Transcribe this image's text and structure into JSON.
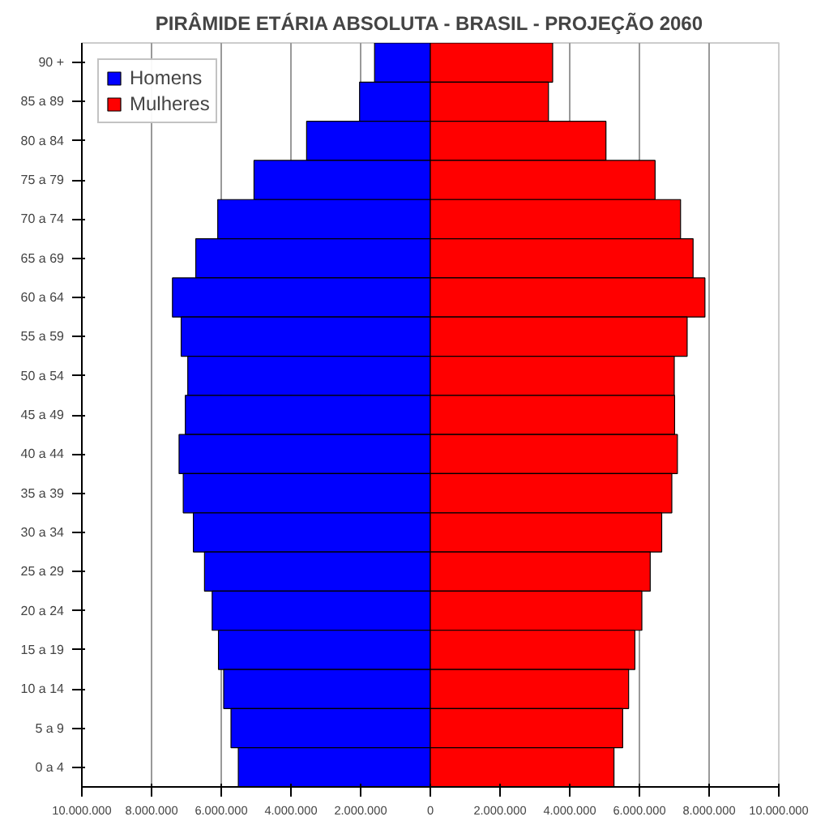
{
  "chart_data": {
    "type": "bar",
    "orientation": "horizontal",
    "title": "PIRÂMIDE ETÁRIA ABSOLUTA - BRASIL - PROJEÇÃO 2060",
    "categories": [
      "90 +",
      "85 a 89",
      "80 a 84",
      "75 a 79",
      "70 a 74",
      "65 a 69",
      "60 a 64",
      "55 a 59",
      "50 a 54",
      "45 a 49",
      "40 a 44",
      "35 a 39",
      "30 a 34",
      "25 a 29",
      "20 a 24",
      "15 a 19",
      "10 a 14",
      "5 a 9",
      "0 a 4"
    ],
    "series": [
      {
        "name": "Homens",
        "color": "#0000ff",
        "values": [
          -1600000,
          -2030000,
          -3550000,
          -5060000,
          -6100000,
          -6730000,
          -7400000,
          -7150000,
          -6960000,
          -7030000,
          -7210000,
          -7090000,
          -6800000,
          -6480000,
          -6260000,
          -6080000,
          -5930000,
          -5720000,
          -5510000
        ]
      },
      {
        "name": "Mulheres",
        "color": "#ff0000",
        "values": [
          3510000,
          3390000,
          5040000,
          6450000,
          7180000,
          7540000,
          7880000,
          7370000,
          7000000,
          7010000,
          7090000,
          6930000,
          6640000,
          6310000,
          6070000,
          5870000,
          5690000,
          5520000,
          5270000
        ]
      }
    ],
    "xlim": [
      -10000000,
      10000000
    ],
    "xticks": [
      {
        "value": -10000000,
        "label": "10.000.000"
      },
      {
        "value": -8000000,
        "label": "8.000.000"
      },
      {
        "value": -6000000,
        "label": "6.000.000"
      },
      {
        "value": -4000000,
        "label": "4.000.000"
      },
      {
        "value": -2000000,
        "label": "2.000.000"
      },
      0,
      {
        "value": 2000000,
        "label": "2.000.000"
      },
      {
        "value": 4000000,
        "label": "4.000.000"
      },
      {
        "value": 6000000,
        "label": "6.000.000"
      },
      {
        "value": 8000000,
        "label": "8.000.000"
      },
      {
        "value": 10000000,
        "label": "10.000.000"
      }
    ],
    "grid": "x",
    "legend": "top left",
    "stacked": true
  }
}
